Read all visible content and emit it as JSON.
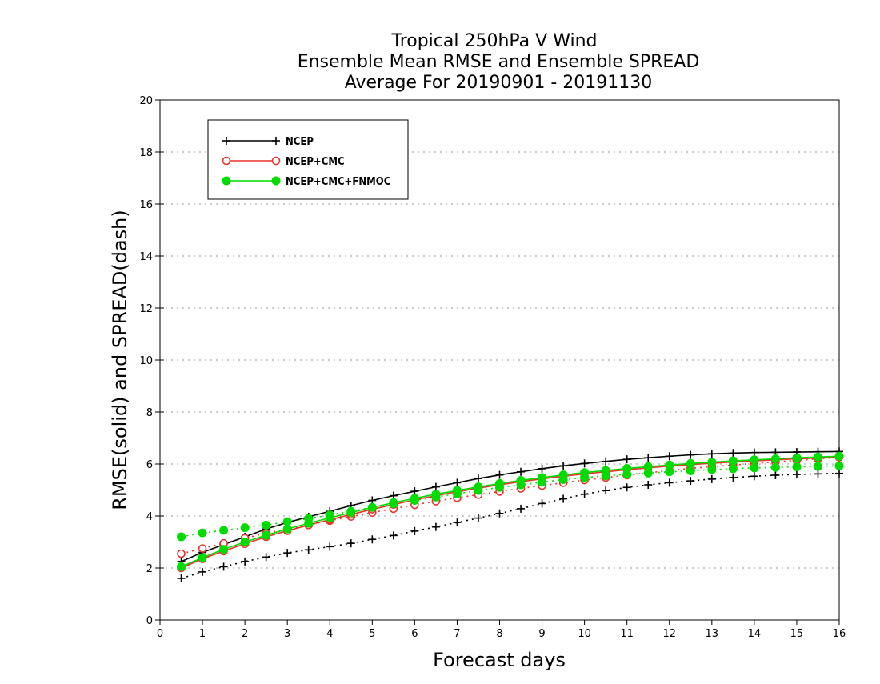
{
  "chart_data": {
    "type": "line",
    "title": [
      "Tropical 250hPa V Wind",
      "Ensemble Mean RMSE and Ensemble SPREAD",
      "Average For 20190901 - 20191130"
    ],
    "xlabel": "Forecast days",
    "ylabel": "RMSE(solid) and SPREAD(dash)",
    "xlim": [
      0,
      16
    ],
    "ylim": [
      0,
      20
    ],
    "xticks": [
      0,
      1,
      2,
      3,
      4,
      5,
      6,
      7,
      8,
      9,
      10,
      11,
      12,
      13,
      14,
      15,
      16
    ],
    "yticks": [
      0,
      2,
      4,
      6,
      8,
      10,
      12,
      14,
      16,
      18,
      20
    ],
    "grid": "horizontal dotted",
    "legend_position": "top-left",
    "x": [
      0.5,
      1,
      1.5,
      2,
      2.5,
      3,
      3.5,
      4,
      4.5,
      5,
      5.5,
      6,
      6.5,
      7,
      7.5,
      8,
      8.5,
      9,
      9.5,
      10,
      10.5,
      11,
      11.5,
      12,
      12.5,
      13,
      13.5,
      14,
      14.5,
      15,
      15.5,
      16
    ],
    "series": [
      {
        "name": "NCEP",
        "color": "#000000",
        "marker": "plus",
        "rmse": [
          2.25,
          2.6,
          2.9,
          3.2,
          3.5,
          3.75,
          3.97,
          4.18,
          4.4,
          4.6,
          4.78,
          4.95,
          5.12,
          5.28,
          5.44,
          5.58,
          5.7,
          5.82,
          5.93,
          6.02,
          6.1,
          6.18,
          6.24,
          6.3,
          6.35,
          6.39,
          6.42,
          6.44,
          6.45,
          6.46,
          6.47,
          6.48
        ],
        "spread": [
          1.6,
          1.85,
          2.05,
          2.25,
          2.42,
          2.58,
          2.7,
          2.82,
          2.95,
          3.1,
          3.25,
          3.42,
          3.58,
          3.75,
          3.92,
          4.1,
          4.28,
          4.48,
          4.66,
          4.84,
          4.98,
          5.1,
          5.2,
          5.28,
          5.35,
          5.42,
          5.48,
          5.53,
          5.57,
          5.6,
          5.62,
          5.64
        ]
      },
      {
        "name": "NCEP+CMC",
        "color": "#e8322b",
        "marker": "open-circle",
        "rmse": [
          2.0,
          2.35,
          2.65,
          2.93,
          3.2,
          3.43,
          3.65,
          3.86,
          4.06,
          4.26,
          4.44,
          4.62,
          4.78,
          4.93,
          5.07,
          5.2,
          5.32,
          5.43,
          5.53,
          5.62,
          5.7,
          5.78,
          5.85,
          5.92,
          5.98,
          6.03,
          6.08,
          6.12,
          6.16,
          6.2,
          6.23,
          6.26
        ],
        "spread": [
          2.55,
          2.75,
          2.95,
          3.15,
          3.33,
          3.5,
          3.66,
          3.82,
          3.98,
          4.13,
          4.28,
          4.43,
          4.57,
          4.7,
          4.82,
          4.94,
          5.06,
          5.17,
          5.28,
          5.38,
          5.48,
          5.57,
          5.66,
          5.75,
          5.83,
          5.9,
          5.96,
          6.02,
          6.08,
          6.14,
          6.2,
          6.26
        ]
      },
      {
        "name": "NCEP+CMC+FNMOC",
        "color": "#00dc00",
        "marker": "filled-circle",
        "rmse": [
          2.05,
          2.4,
          2.72,
          3.0,
          3.26,
          3.5,
          3.72,
          3.93,
          4.13,
          4.33,
          4.51,
          4.68,
          4.84,
          4.98,
          5.12,
          5.25,
          5.37,
          5.48,
          5.58,
          5.67,
          5.75,
          5.83,
          5.9,
          5.96,
          6.02,
          6.07,
          6.12,
          6.16,
          6.2,
          6.24,
          6.27,
          6.3
        ],
        "spread": [
          3.2,
          3.35,
          3.45,
          3.55,
          3.65,
          3.78,
          3.9,
          4.04,
          4.18,
          4.33,
          4.47,
          4.6,
          4.73,
          4.86,
          4.98,
          5.1,
          5.2,
          5.3,
          5.4,
          5.48,
          5.55,
          5.6,
          5.65,
          5.7,
          5.74,
          5.78,
          5.82,
          5.85,
          5.87,
          5.89,
          5.91,
          5.93
        ]
      }
    ]
  }
}
